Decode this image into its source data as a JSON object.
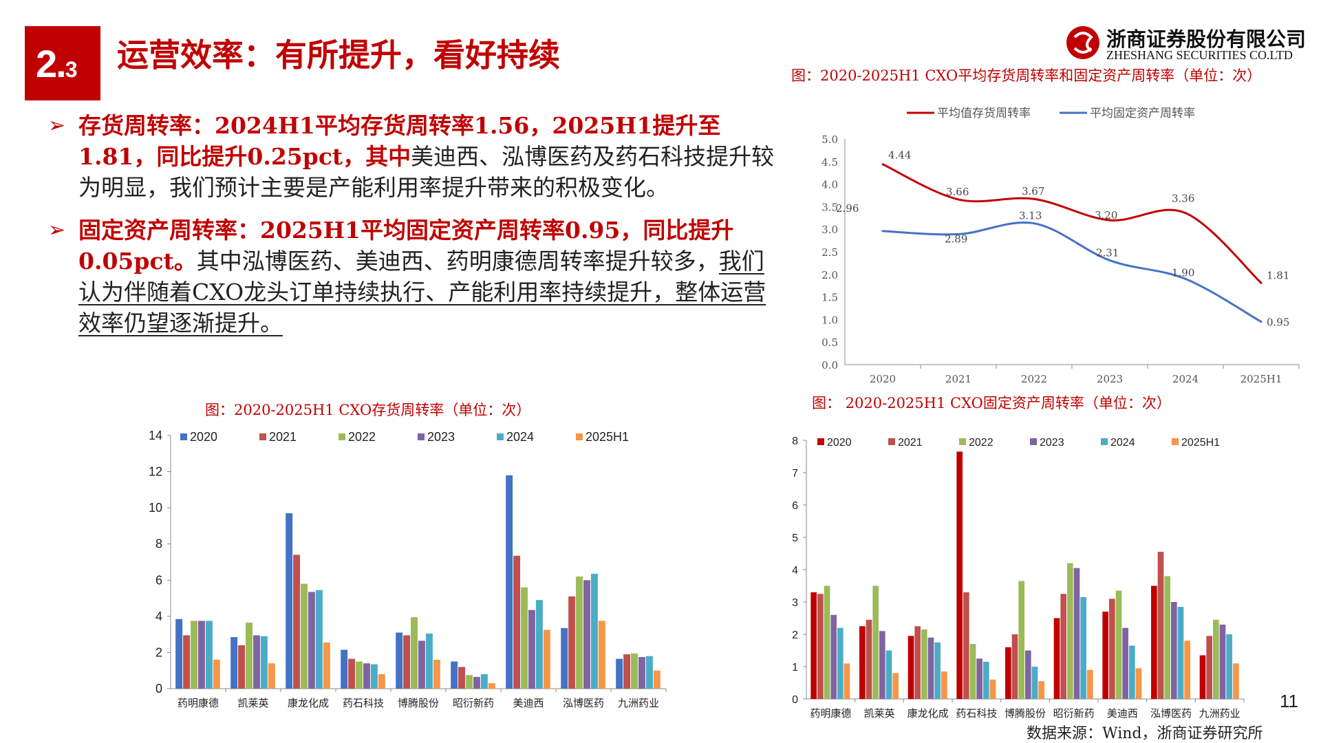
{
  "header": {
    "section_main": "2.",
    "section_sub": "3",
    "title": "运营效率：有所提升，看好持续",
    "logo_cn": "浙商证券股份有限公司",
    "logo_en": "ZHESHANG SECURITIES CO.LTD"
  },
  "bullets": [
    {
      "lead_bold": "存货周转率：2024H1平均存货周转率1.56，2025H1提升至1.81，同比提升0.25pct，其中",
      "rest": "美迪西、泓博医药及药石科技提升较为明显，我们预计主要是产能利用率提升带来的积极变化。"
    },
    {
      "lead_bold": "固定资产周转率：2025H1平均固定资产周转率0.95，同比提升0.05pct。",
      "rest": "其中泓博医药、美迪西、药明康德周转率提升较多，",
      "underline": "我们认为伴随着CXO龙头订单持续执行、产能利用率持续提升，整体运营效率仍望逐渐提升。"
    }
  ],
  "colors": {
    "brand_red": "#c00000",
    "line_red": "#c00000",
    "line_blue": "#4472c4",
    "s2020_inv": "#4472c4",
    "s2021": "#c0504d",
    "s2022": "#9bbb59",
    "s2023": "#8064a2",
    "s2024": "#4bacc6",
    "s2025": "#f79646",
    "s2020_fixed": "#c00000"
  },
  "captions": {
    "line": "图：2020-2025H1 CXO平均存货周转率和固定资产周转率（单位：次）",
    "inventory": "图：2020-2025H1 CXO存货周转率（单位：次）",
    "fixed": "图： 2020-2025H1 CXO固定资产周转率（单位：次）"
  },
  "chart_data": [
    {
      "type": "line",
      "title": "2020-2025H1 CXO平均存货周转率和固定资产周转率（单位：次）",
      "categories": [
        "2020",
        "2021",
        "2022",
        "2023",
        "2024",
        "2025H1"
      ],
      "series": [
        {
          "name": "平均值存货周转率",
          "values": [
            4.44,
            3.66,
            3.67,
            3.2,
            3.36,
            1.81
          ],
          "labels": [
            "4.44",
            "3.66",
            "3.67",
            "3.20",
            "3.36",
            "1.81"
          ]
        },
        {
          "name": "平均固定资产周转率",
          "values": [
            2.96,
            2.89,
            3.13,
            2.31,
            1.9,
            0.95
          ],
          "labels": [
            "2.96",
            "2.89",
            "3.13",
            "2.31",
            "1.90",
            "0.95"
          ]
        }
      ],
      "ylim": [
        0,
        5
      ],
      "yticks": [
        "0.0",
        "0.5",
        "1.0",
        "1.5",
        "2.0",
        "2.5",
        "3.0",
        "3.5",
        "4.0",
        "4.5",
        "5.0"
      ]
    },
    {
      "type": "bar",
      "title": "2020-2025H1 CXO存货周转率（单位：次）",
      "categories": [
        "药明康德",
        "凯莱英",
        "康龙化成",
        "药石科技",
        "博腾股份",
        "昭衍新药",
        "美迪西",
        "泓博医药",
        "九洲药业"
      ],
      "series": [
        {
          "name": "2020",
          "values": [
            3.85,
            2.85,
            9.7,
            2.15,
            3.1,
            1.5,
            11.8,
            3.35,
            1.65
          ]
        },
        {
          "name": "2021",
          "values": [
            2.95,
            2.4,
            7.4,
            1.65,
            2.95,
            1.2,
            7.35,
            5.1,
            1.9
          ]
        },
        {
          "name": "2022",
          "values": [
            3.75,
            3.65,
            5.8,
            1.5,
            3.95,
            0.75,
            5.6,
            6.2,
            1.95
          ]
        },
        {
          "name": "2023",
          "values": [
            3.75,
            2.95,
            5.35,
            1.4,
            2.65,
            0.65,
            4.35,
            6.0,
            1.75
          ]
        },
        {
          "name": "2024",
          "values": [
            3.75,
            2.9,
            5.45,
            1.35,
            3.05,
            0.8,
            4.9,
            6.35,
            1.8
          ]
        },
        {
          "name": "2025H1",
          "values": [
            1.6,
            1.4,
            2.55,
            0.8,
            1.6,
            0.3,
            3.25,
            3.75,
            1.0
          ]
        }
      ],
      "ylim": [
        0,
        14
      ],
      "yticks": [
        "0",
        "2",
        "4",
        "6",
        "8",
        "10",
        "12",
        "14"
      ]
    },
    {
      "type": "bar",
      "title": "2020-2025H1 CXO固定资产周转率（单位：次）",
      "categories": [
        "药明康德",
        "凯莱英",
        "康龙化成",
        "药石科技",
        "博腾股份",
        "昭衍新药",
        "美迪西",
        "泓博医药",
        "九洲药业"
      ],
      "series": [
        {
          "name": "2020",
          "values": [
            3.3,
            2.25,
            1.95,
            7.65,
            1.6,
            2.5,
            2.7,
            3.5,
            1.35
          ]
        },
        {
          "name": "2021",
          "values": [
            3.25,
            2.45,
            2.25,
            3.3,
            2.0,
            3.25,
            3.1,
            4.55,
            1.95
          ]
        },
        {
          "name": "2022",
          "values": [
            3.5,
            3.5,
            2.15,
            1.7,
            3.65,
            4.2,
            3.35,
            3.8,
            2.45
          ]
        },
        {
          "name": "2023",
          "values": [
            2.6,
            2.1,
            1.9,
            1.25,
            1.5,
            4.05,
            2.2,
            3.0,
            2.3
          ]
        },
        {
          "name": "2024",
          "values": [
            2.2,
            1.5,
            1.75,
            1.15,
            1.0,
            3.15,
            1.65,
            2.85,
            2.0
          ]
        },
        {
          "name": "2025H1",
          "values": [
            1.1,
            0.8,
            0.85,
            0.6,
            0.55,
            0.9,
            0.95,
            1.8,
            1.1
          ]
        }
      ],
      "ylim": [
        0,
        8
      ],
      "yticks": [
        "0",
        "1",
        "2",
        "3",
        "4",
        "5",
        "6",
        "7",
        "8"
      ]
    }
  ],
  "footer": {
    "page": "11",
    "source": "数据来源：Wind，浙商证券研究所"
  }
}
